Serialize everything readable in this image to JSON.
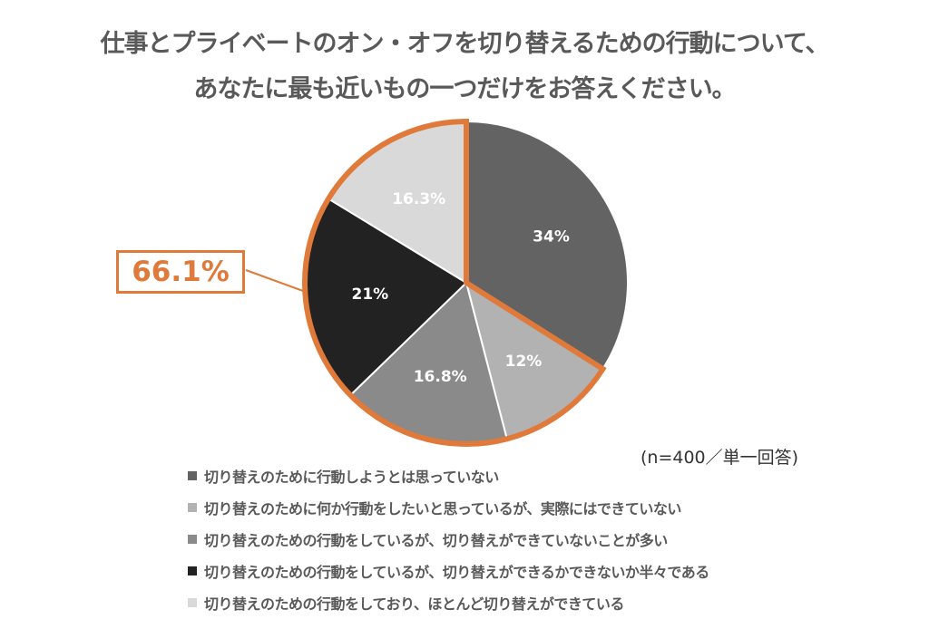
{
  "title": {
    "line1": "仕事とプライベートのオン・オフを切り替えるための行動について、",
    "line2": "あなたに最も近いもの一つだけをお答えください。"
  },
  "note": "(n=400／単一回答)",
  "callout": {
    "value": "66.1%",
    "color": "#e07a3a"
  },
  "legend": [
    {
      "label": "切り替えのために行動しようとは思っていない",
      "color": "#636363"
    },
    {
      "label": "切り替えのために何か行動をしたいと思っているが、実際にはできていない",
      "color": "#b2b2b2"
    },
    {
      "label": "切り替えのための行動をしているが、切り替えができていないことが多い",
      "color": "#8a8a8a"
    },
    {
      "label": "切り替えのための行動をしているが、切り替えができるかできないか半々である",
      "color": "#222222"
    },
    {
      "label": "切り替えのための行動をしており、ほとんど切り替えができている",
      "color": "#d9d9d9"
    }
  ],
  "chart_data": {
    "type": "pie",
    "title": "仕事とプライベートのオン・オフを切り替えるための行動について、あなたに最も近いもの一つだけをお答えください。",
    "categories": [
      "切り替えのために行動しようとは思っていない",
      "切り替えのために何か行動をしたいと思っているが、実際にはできていない",
      "切り替えのための行動をしているが、切り替えができていないことが多い",
      "切り替えのための行動をしているが、切り替えができるかできないか半々である",
      "切り替えのための行動をしており、ほとんど切り替えができている"
    ],
    "values": [
      34,
      12,
      16.8,
      21,
      16.3
    ],
    "labels": [
      "34%",
      "12%",
      "16.8%",
      "21%",
      "16.3%"
    ],
    "colors": [
      "#636363",
      "#b2b2b2",
      "#8a8a8a",
      "#222222",
      "#d9d9d9"
    ],
    "label_colors": [
      "#ffffff",
      "#ffffff",
      "#ffffff",
      "#ffffff",
      "#ffffff"
    ],
    "start_angle": "12 o'clock, clockwise",
    "highlight": {
      "slices": [
        1,
        2,
        3,
        4
      ],
      "total": "66.1%",
      "outline_color": "#e07a3a"
    },
    "legend_position": "bottom",
    "annotation": "(n=400／単一回答)"
  }
}
